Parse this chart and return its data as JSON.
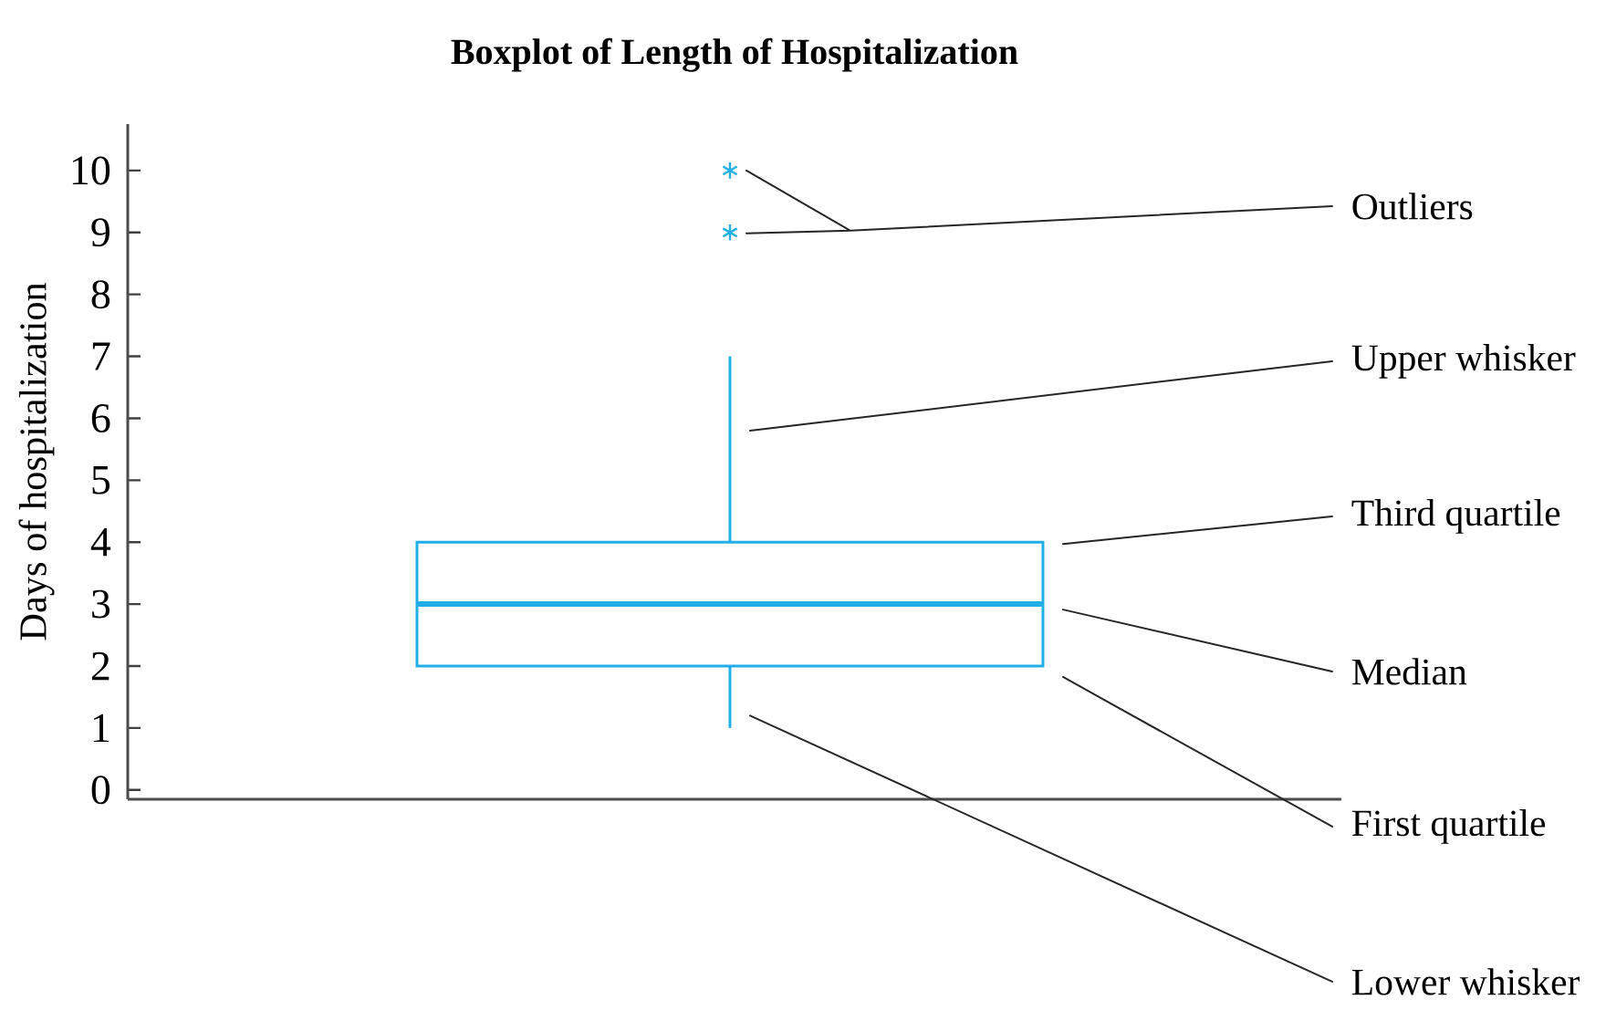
{
  "chart_data": {
    "type": "box",
    "title": "Boxplot of Length of Hospitalization",
    "ylabel": "Days of hospitalization",
    "categories": [
      null
    ],
    "series": [
      {
        "color": "#22aee6",
        "boxes": [
          {
            "low": 1,
            "q1": 2,
            "median": 3,
            "q3": 4,
            "high": 7,
            "outliers": [
              9,
              10
            ]
          }
        ]
      }
    ],
    "marker": "star",
    "ylim": [
      -0.15,
      10.75
    ],
    "yticks": [
      0,
      1,
      2,
      3,
      4,
      5,
      6,
      7,
      8,
      9,
      10
    ],
    "annotations": [
      "Outliers",
      "Upper whisker",
      "Third quartile",
      "Median",
      "First quartile",
      "Lower whisker"
    ]
  }
}
